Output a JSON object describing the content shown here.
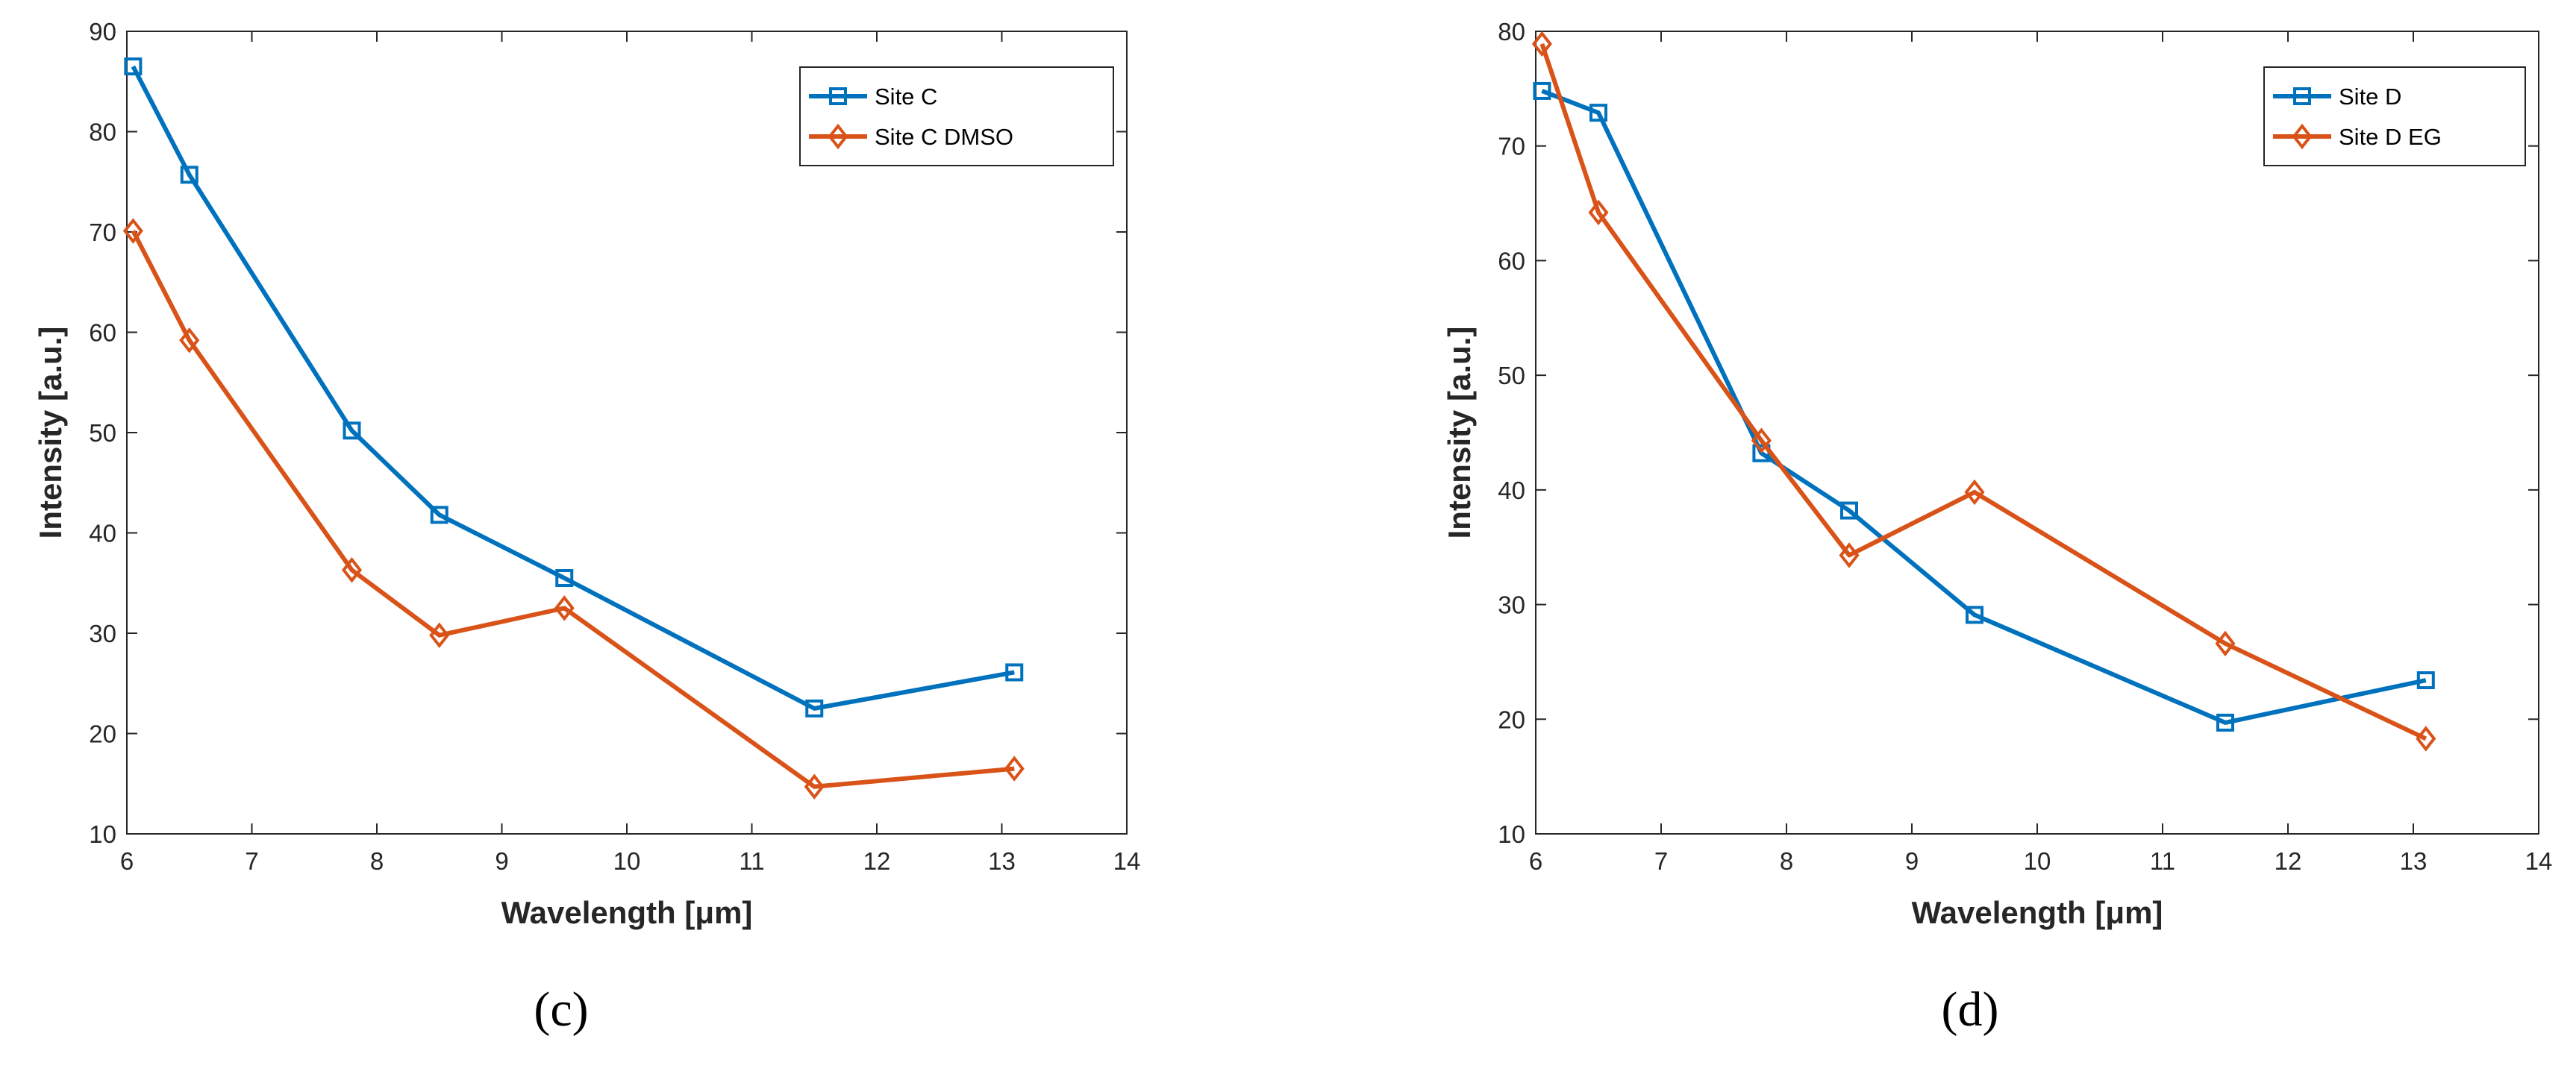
{
  "chart_data": [
    {
      "type": "line",
      "panel_label": "(c)",
      "xlabel": "Wavelength [μm]",
      "ylabel": "Intensity [a.u.]",
      "xlim": [
        6,
        14
      ],
      "ylim": [
        10,
        90
      ],
      "xticks": [
        6,
        7,
        8,
        9,
        10,
        11,
        12,
        13,
        14
      ],
      "yticks": [
        10,
        20,
        30,
        40,
        50,
        60,
        70,
        80,
        90
      ],
      "grid": false,
      "legend_position": "top-right",
      "x": [
        6.05,
        6.5,
        7.8,
        8.5,
        9.5,
        11.5,
        13.1
      ],
      "series": [
        {
          "name": "Site C",
          "color": "#0072BD",
          "marker": "square",
          "values": [
            86.5,
            75.7,
            50.2,
            41.8,
            35.5,
            22.5,
            26.1
          ]
        },
        {
          "name": "Site C DMSO",
          "color": "#D95319",
          "marker": "diamond",
          "values": [
            70.1,
            59.2,
            36.3,
            29.8,
            32.5,
            14.7,
            16.5
          ]
        }
      ]
    },
    {
      "type": "line",
      "panel_label": "(d)",
      "xlabel": "Wavelength [μm]",
      "ylabel": "Intensity [a.u.]",
      "xlim": [
        6,
        14
      ],
      "ylim": [
        10,
        80
      ],
      "xticks": [
        6,
        7,
        8,
        9,
        10,
        11,
        12,
        13,
        14
      ],
      "yticks": [
        10,
        20,
        30,
        40,
        50,
        60,
        70,
        80
      ],
      "grid": false,
      "legend_position": "top-right",
      "x": [
        6.05,
        6.5,
        7.8,
        8.5,
        9.5,
        11.5,
        13.1
      ],
      "series": [
        {
          "name": "Site D",
          "color": "#0072BD",
          "marker": "square",
          "values": [
            74.8,
            72.9,
            43.2,
            38.2,
            29.1,
            19.7,
            23.4
          ]
        },
        {
          "name": "Site D EG",
          "color": "#D95319",
          "marker": "diamond",
          "values": [
            78.9,
            64.2,
            44.3,
            34.3,
            39.8,
            26.6,
            18.3
          ]
        }
      ]
    }
  ]
}
